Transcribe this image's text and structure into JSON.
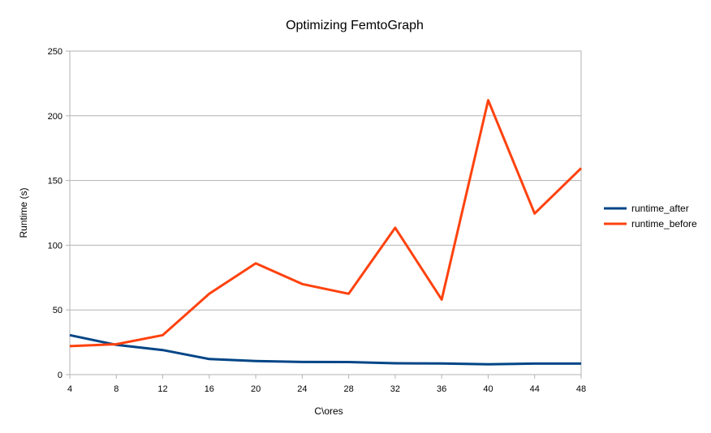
{
  "chart_data": {
    "type": "line",
    "title": "Optimizing FemtoGraph",
    "xlabel": "C\\ores",
    "ylabel": "Runtime (s)",
    "x": [
      4,
      8,
      12,
      16,
      20,
      24,
      28,
      32,
      36,
      40,
      44,
      48
    ],
    "xticks": [
      "4",
      "8",
      "12",
      "16",
      "20",
      "24",
      "28",
      "32",
      "36",
      "40",
      "44",
      "48"
    ],
    "ylim": [
      0,
      250
    ],
    "yticks": [
      "0",
      "50",
      "100",
      "150",
      "200",
      "250"
    ],
    "ytick_values": [
      0,
      50,
      100,
      150,
      200,
      250
    ],
    "grid": true,
    "legend_position": "right",
    "series": [
      {
        "name": "runtime_after",
        "color": "#004586",
        "values": [
          30.5,
          23,
          19,
          12,
          10.5,
          9.8,
          9.7,
          8.8,
          8.6,
          8.0,
          8.5,
          8.5
        ]
      },
      {
        "name": "runtime_before",
        "color": "#ff420e",
        "values": [
          22,
          23.5,
          30.5,
          62.5,
          86,
          70,
          62.5,
          113.5,
          58,
          212,
          124.5,
          159.5
        ]
      }
    ]
  }
}
